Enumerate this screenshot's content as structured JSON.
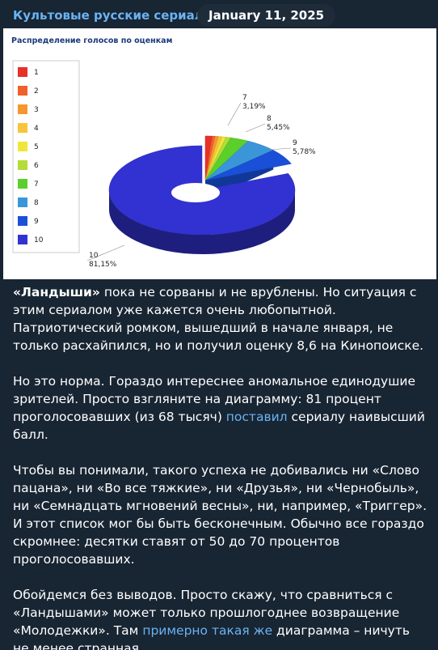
{
  "header": {
    "channel": "Культовые русские сериалы",
    "date": "January 11, 2025"
  },
  "chart_data": {
    "type": "pie",
    "title": "Распределение голосов по оценкам",
    "categories": [
      "1",
      "2",
      "3",
      "4",
      "5",
      "6",
      "7",
      "8",
      "9",
      "10"
    ],
    "values": [
      1.2,
      0.5,
      0.6,
      0.6,
      0.7,
      0.83,
      3.19,
      5.45,
      5.78,
      81.15
    ],
    "value_labels": [
      null,
      null,
      null,
      null,
      null,
      null,
      "3,19%",
      "5,45%",
      "5,78%",
      "81,15%"
    ],
    "colors": [
      "#e8302a",
      "#f0602a",
      "#f5962e",
      "#f8c43a",
      "#f0e63a",
      "#b4dc3a",
      "#5ccf2a",
      "#3a96d8",
      "#1a50d8",
      "#3232d2"
    ]
  },
  "message": {
    "paragraphs": [
      [
        {
          "kind": "bold",
          "text": "«Ландыши»"
        },
        {
          "kind": "plain",
          "text": " пока не сорваны и не врублены. Но ситуация с этим сериалом уже кажется очень любопытной. Патриотический ромком, вышедший в начале января, не только расхайпился, но и получил оценку 8,6 на Кинопоиске."
        }
      ],
      [
        {
          "kind": "plain",
          "text": "Но это норма. Гораздо интереснее аномальное единодушие зрителей. Просто взгляните на диаграмму: 81 процент проголосовавших (из 68 тысяч) "
        },
        {
          "kind": "link",
          "text": "поставил"
        },
        {
          "kind": "plain",
          "text": " сериалу наивысший балл."
        }
      ],
      [
        {
          "kind": "plain",
          "text": "Чтобы вы понимали, такого успеха не добивались ни «Слово пацана», ни «Во все тяжкие», ни «Друзья», ни «Чернобыль», ни «Семнадцать мгновений весны», ни, например, «Триггер». И этот список мог бы быть бесконечным. Обычно все гораздо скромнее: десятки ставят от 50 до 70 процентов проголосовавших."
        }
      ],
      [
        {
          "kind": "plain",
          "text": "Обойдемся без выводов. Просто скажу, что сравниться с «Ландышами» может только прошлогоднее возвращение «Молодежки». Там "
        },
        {
          "kind": "link",
          "text": "примерно такая же"
        },
        {
          "kind": "plain",
          "text": " диаграмма – ничуть не менее странная."
        }
      ]
    ]
  }
}
